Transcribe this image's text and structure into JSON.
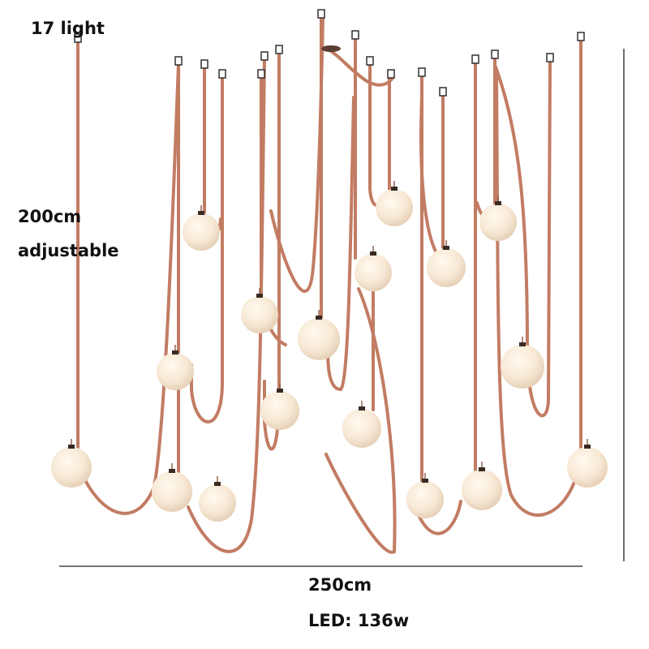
{
  "labels": {
    "count": "17 light",
    "height": "200cm",
    "height_note": "adjustable",
    "width": "250cm",
    "power": "LED: 136w"
  }
}
